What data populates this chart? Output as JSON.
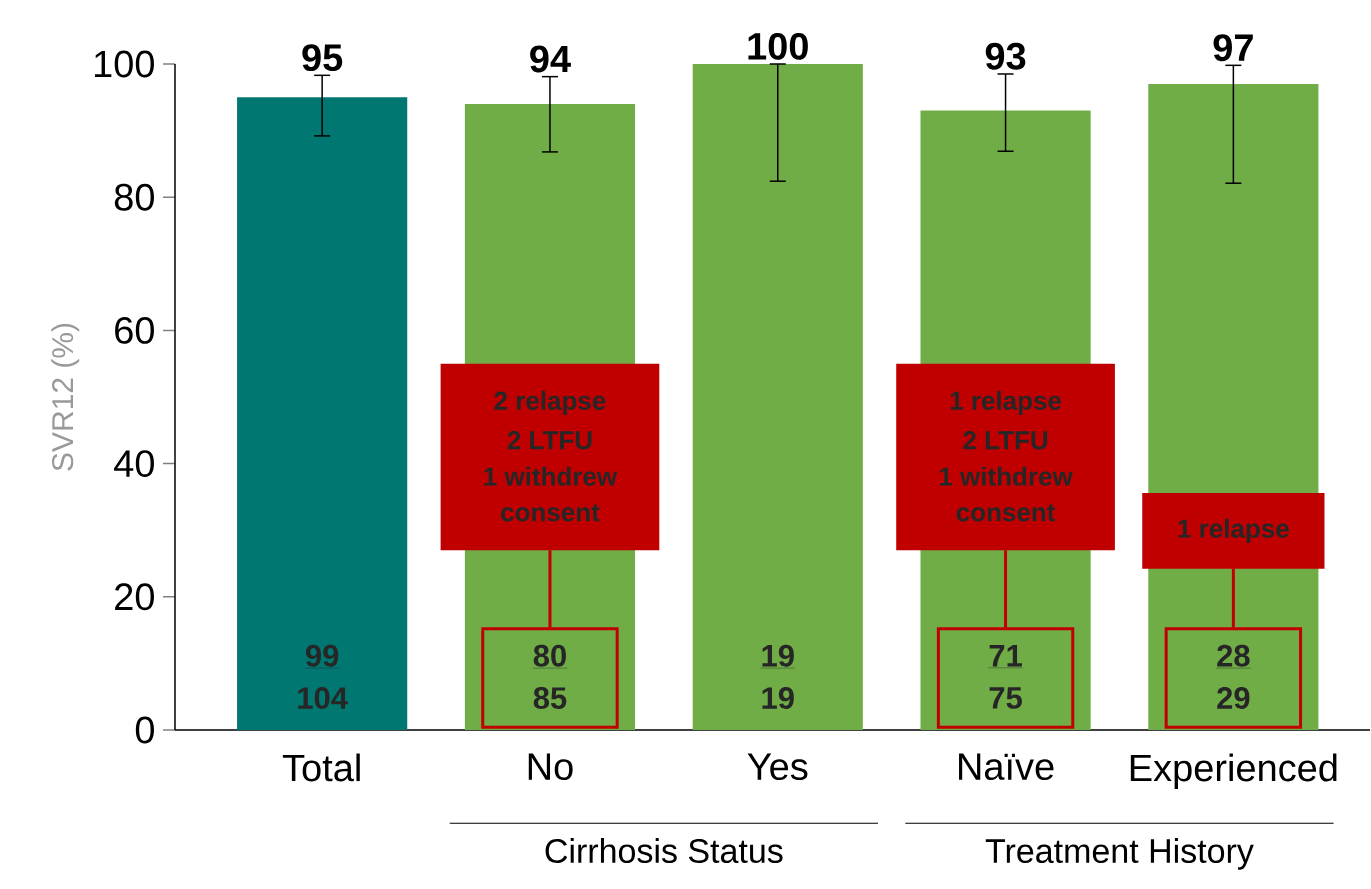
{
  "chart_data": {
    "type": "bar",
    "ylabel": "SVR12 (%)",
    "categories": [
      "Total",
      "No",
      "Yes",
      "Naïve",
      "Experienced"
    ],
    "values": [
      95,
      94,
      100,
      93,
      97
    ],
    "colors": [
      "#007770",
      "#70ad47",
      "#70ad47",
      "#70ad47",
      "#70ad47"
    ],
    "errors": [
      [
        89.2,
        98.3
      ],
      [
        86.8,
        98.1
      ],
      [
        82.4,
        100
      ],
      [
        86.9,
        98.5
      ],
      [
        82.1,
        99.8
      ]
    ],
    "data_labels": true,
    "ylim": [
      0,
      100
    ],
    "yticks": [
      0,
      20,
      40,
      60,
      80,
      100
    ],
    "annotations": [
      "Cirrhosis Status",
      "Treatment History",
      "99",
      "104",
      "80",
      "85",
      "19",
      "19",
      "71",
      "75",
      "28",
      "29",
      "2 relapse",
      "2 LTFU",
      "1 withdrew",
      "consent",
      "1 relapse",
      "2 LTFU",
      "1 withdrew",
      "consent",
      "1 relapse"
    ]
  }
}
